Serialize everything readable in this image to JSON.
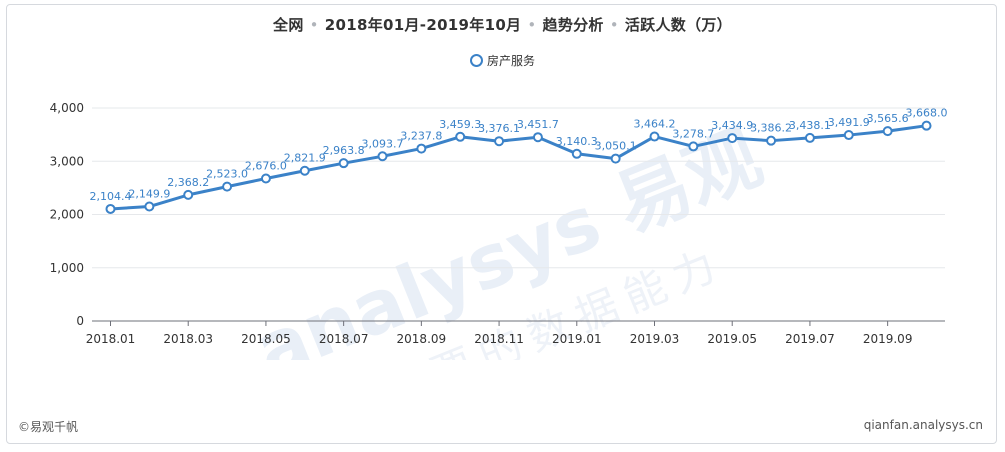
{
  "header": {
    "title_parts": [
      "全网",
      "2018年01月-2019年10月",
      "趋势分析",
      "活跃人数（万）"
    ]
  },
  "watermark": {
    "line1": "analysys 易观",
    "line2": "你要的数据能力"
  },
  "footer": {
    "left": "©易观千帆",
    "right": "qianfan.analysys.cn"
  },
  "chart_data": {
    "type": "line",
    "title": "全网 • 2018年01月-2019年10月 • 趋势分析 • 活跃人数（万）",
    "x": [
      "2018.01",
      "2018.02",
      "2018.03",
      "2018.04",
      "2018.05",
      "2018.06",
      "2018.07",
      "2018.08",
      "2018.09",
      "2018.10",
      "2018.11",
      "2018.12",
      "2019.01",
      "2019.02",
      "2019.03",
      "2019.04",
      "2019.05",
      "2019.06",
      "2019.07",
      "2019.08",
      "2019.09",
      "2019.10"
    ],
    "x_tick_labels": [
      "2018.01",
      "2018.03",
      "2018.05",
      "2018.07",
      "2018.09",
      "2018.11",
      "2019.01",
      "2019.03",
      "2019.05",
      "2019.07",
      "2019.09"
    ],
    "series": [
      {
        "name": "房产服务",
        "color": "#3b82c8",
        "values": [
          2104.4,
          2149.9,
          2368.2,
          2523.0,
          2676.0,
          2821.9,
          2963.8,
          3093.7,
          3237.8,
          3459.3,
          3376.1,
          3451.7,
          3140.3,
          3050.1,
          3464.2,
          3278.7,
          3434.9,
          3386.2,
          3438.1,
          3491.9,
          3565.6,
          3668.0
        ],
        "labels": [
          "2,104.4",
          "2,149.9",
          "2,368.2",
          "2,523.0",
          "2,676.0",
          "2,821.9",
          "2,963.8",
          "3,093.7",
          "3,237.8",
          "3,459.3",
          "3,376.1",
          "3,451.7",
          "3,140.3",
          "3,050.1",
          "3,464.2",
          "3,278.7",
          "3,434.9",
          "3,386.2",
          "3,438.1",
          "3,491.9",
          "3,565.6",
          "3,668.0"
        ]
      }
    ],
    "ylim": [
      0,
      4000
    ],
    "y_ticks": [
      0,
      1000,
      2000,
      3000,
      4000
    ],
    "y_tick_labels": [
      "0",
      "1,000",
      "2,000",
      "3,000",
      "4,000"
    ],
    "grid": true,
    "legend_position": "top-center"
  }
}
